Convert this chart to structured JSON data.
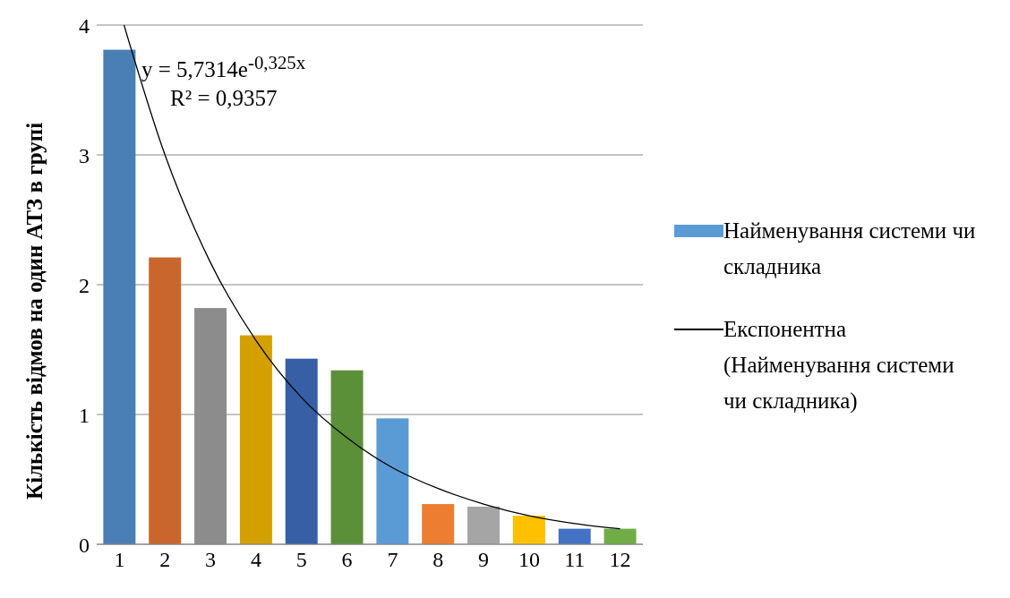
{
  "chart_data": {
    "type": "bar",
    "ylabel": "Кількість відмов на один АТЗ в групі",
    "x": [
      1,
      2,
      3,
      4,
      5,
      6,
      7,
      8,
      9,
      10,
      11,
      12
    ],
    "series": [
      {
        "name": "Найменування системи чи складника",
        "color": "#5b9bd5",
        "colors": [
          "#4a7fb5",
          "#c8662c",
          "#8c8c8c",
          "#d4a000",
          "#365fa6",
          "#5b9039",
          "#5b9bd5",
          "#ed7d31",
          "#a5a5a5",
          "#ffc000",
          "#4472c4",
          "#70ad47"
        ],
        "values": [
          3.81,
          2.21,
          1.82,
          1.61,
          1.43,
          1.34,
          0.97,
          0.31,
          0.29,
          0.22,
          0.12,
          0.12
        ]
      },
      {
        "name": "Експонентна (Найменування системи чи складника)",
        "type": "line",
        "color": "#000000",
        "x": [
          1.1,
          2,
          3,
          4,
          5,
          6,
          7,
          8,
          9,
          10,
          11,
          12
        ],
        "values": [
          4.0,
          3.0,
          2.17,
          1.57,
          1.13,
          0.82,
          0.59,
          0.43,
          0.31,
          0.22,
          0.16,
          0.12
        ]
      }
    ],
    "annotations": [
      "y = 5,7314e$^{-0,325x}$",
      "R² = 0,9357"
    ],
    "xlim": [
      0.5,
      12.5
    ],
    "xticks": [
      1,
      2,
      3,
      4,
      5,
      6,
      7,
      8,
      9,
      10,
      11,
      12
    ],
    "ylim": [
      0,
      4
    ],
    "yticks": [
      0,
      1,
      2,
      3,
      4
    ],
    "grid": "y",
    "legend": "right"
  }
}
